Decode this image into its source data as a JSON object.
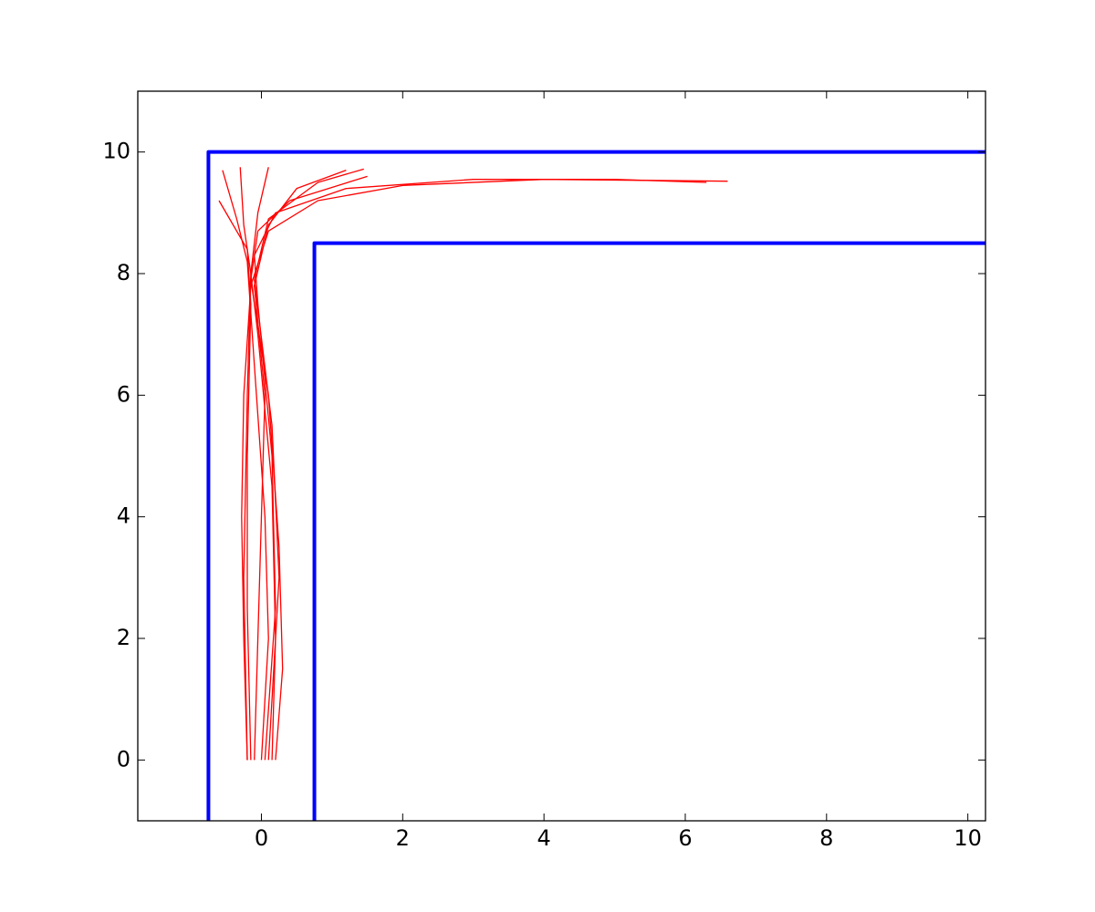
{
  "chart_data": {
    "type": "line",
    "xlim": [
      -1.75,
      10.25
    ],
    "ylim": [
      -1,
      11
    ],
    "xticks": [
      0,
      2,
      4,
      6,
      8,
      10
    ],
    "yticks": [
      0,
      2,
      4,
      6,
      8,
      10
    ],
    "grid": false,
    "series": [
      {
        "color": "#0000ff",
        "width": 4,
        "x": [
          -0.75,
          -0.75,
          10.25
        ],
        "values": [
          -1,
          10,
          10
        ]
      },
      {
        "color": "#0000ff",
        "width": 4,
        "x": [
          0.75,
          0.75,
          10.25
        ],
        "values": [
          -1,
          8.5,
          8.5
        ]
      },
      {
        "color": "#ff0000",
        "width": 1.3,
        "x": [
          -0.2,
          -0.25,
          -0.28,
          -0.25,
          -0.15,
          0.1,
          0.8,
          2,
          4,
          6.6
        ],
        "values": [
          0,
          2,
          4,
          6,
          7.8,
          8.7,
          9.2,
          9.45,
          9.55,
          9.52
        ]
      },
      {
        "color": "#ff0000",
        "width": 1.3,
        "x": [
          0.2,
          0.3,
          0.25,
          0.1,
          -0.15,
          -0.05,
          0.4,
          1.5
        ],
        "values": [
          0,
          1.5,
          3.5,
          6,
          7.9,
          8.7,
          9.2,
          9.6
        ]
      },
      {
        "color": "#ff0000",
        "width": 1.3,
        "x": [
          0,
          0.1,
          0.05,
          -0.1,
          -0.2,
          -0.35,
          -0.55
        ],
        "values": [
          0,
          2,
          4,
          6.5,
          8.2,
          8.9,
          9.7
        ]
      },
      {
        "color": "#ff0000",
        "width": 1.3,
        "x": [
          -0.15,
          -0.2,
          -0.2,
          -0.15,
          -0.2,
          -0.45,
          -0.6
        ],
        "values": [
          0,
          2.5,
          5,
          7.5,
          8.4,
          8.9,
          9.2
        ]
      },
      {
        "color": "#ff0000",
        "width": 1.3,
        "x": [
          0.15,
          0.2,
          0.15,
          -0.05,
          -0.15,
          -0.05,
          0.1
        ],
        "values": [
          0,
          2,
          4.5,
          7,
          8,
          9,
          9.75
        ]
      },
      {
        "color": "#ff0000",
        "width": 1.3,
        "x": [
          -0.1,
          -0.05,
          0,
          0.05,
          -0.1,
          0.1,
          0.5,
          1.2
        ],
        "values": [
          0,
          2,
          4,
          6,
          7.8,
          8.8,
          9.4,
          9.7
        ]
      },
      {
        "color": "#ff0000",
        "width": 1.3,
        "x": [
          0.05,
          0.2,
          0.15,
          -0.05,
          -0.1,
          0.2,
          1.2,
          3,
          5,
          6.3
        ],
        "values": [
          0,
          2.5,
          5,
          7.5,
          8.3,
          9,
          9.4,
          9.55,
          9.55,
          9.5
        ]
      },
      {
        "color": "#ff0000",
        "width": 1.3,
        "x": [
          -0.2,
          -0.25,
          -0.2,
          -0.15,
          -0.25,
          -0.3
        ],
        "values": [
          0,
          3,
          6,
          8,
          8.8,
          9.75
        ]
      },
      {
        "color": "#ff0000",
        "width": 1.3,
        "x": [
          0.1,
          0.25,
          0.15,
          -0.1,
          0.1,
          0.8,
          1.45
        ],
        "values": [
          0,
          3,
          5.5,
          7.9,
          8.9,
          9.5,
          9.72
        ]
      }
    ]
  }
}
